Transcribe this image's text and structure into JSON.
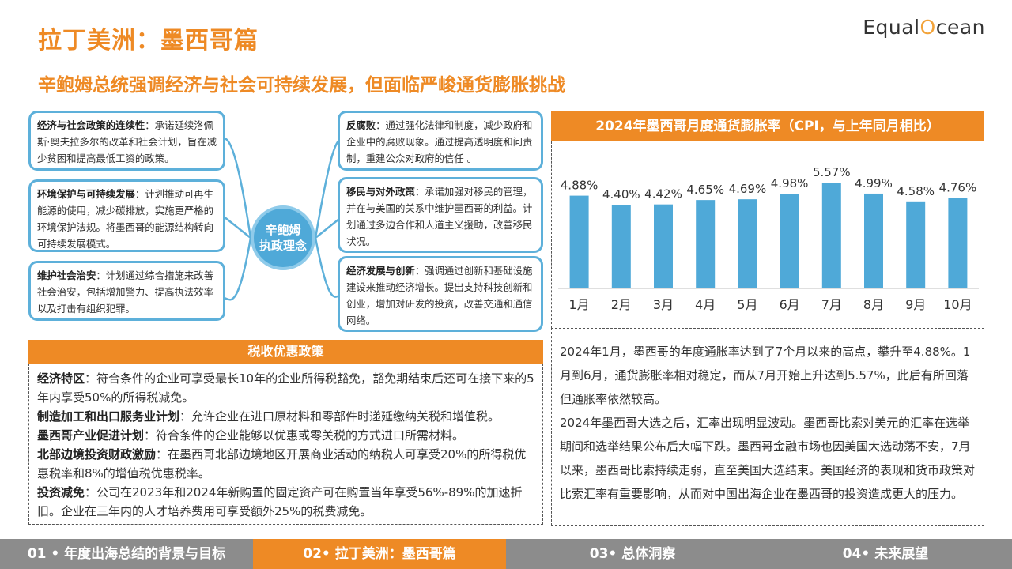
{
  "header": {
    "title": "拉丁美洲：墨西哥篇",
    "subtitle": "辛鲍姆总统强调经济与社会可持续发展，但面临严峻通货膨胀挑战",
    "logo_prefix": "Equal",
    "logo_o": "O",
    "logo_suffix": "cean"
  },
  "mindmap": {
    "center_line1": "辛鲍姆",
    "center_line2": "执政理念",
    "items": [
      {
        "title": "经济与社会政策的连续性",
        "text": "：承诺延续洛佩斯·奥夫拉多尔的改革和社会计划，旨在减少贫困和提高最低工资的政策。"
      },
      {
        "title": "环境保护与可持续发展",
        "text": "：计划推动可再生能源的使用，减少碳排放，实施更严格的环境保护法规。将墨西哥的能源结构转向可持续发展模式。"
      },
      {
        "title": "维护社会治安",
        "text": "：计划通过综合措施来改善社会治安，包括增加警力、提高执法效率以及打击有组织犯罪。"
      },
      {
        "title": "反腐败",
        "text": "：通过强化法律和制度，减少政府和企业中的腐败现象。通过提高透明度和问责制，重建公众对政府的信任 。"
      },
      {
        "title": "移民与对外政策",
        "text": "：承诺加强对移民的管理，并在与美国的关系中维护墨西哥的利益。计划通过多边合作和人道主义援助，改善移民状况。"
      },
      {
        "title": "经济发展与创新",
        "text": "：强调通过创新和基础设施建设来推动经济增长。提出支持科技创新和创业，增加对研发的投资，改善交通和通信网络。"
      }
    ]
  },
  "tax": {
    "heading": "税收优惠政策",
    "items": [
      {
        "title": "经济特区",
        "text": "：符合条件的企业可享受最长10年的企业所得税豁免，豁免期结束后还可在接下来的5年内享受50%的所得税减免。"
      },
      {
        "title": "制造加工和出口服务业计划",
        "text": "：允许企业在进口原材料和零部件时递延缴纳关税和增值税。"
      },
      {
        "title": "墨西哥产业促进计划",
        "text": "：符合条件的企业能够以优惠或零关税的方式进口所需材料。"
      },
      {
        "title": "北部边境投资财政激励",
        "text": "：在墨西哥北部边境地区开展商业活动的纳税人可享受20%的所得税优惠税率和8%的增值税优惠税率。"
      },
      {
        "title": "投资减免",
        "text": "：公司在2023年和2024年新购置的固定资产可在购置当年享受56%-89%的加速折旧。企业在三年内的人才培养费用可享受额外25%的税费减免。"
      }
    ]
  },
  "chart_data": {
    "type": "bar",
    "title": "2024年墨西哥月度通货膨胀率（CPI，与上年同月相比）",
    "categories": [
      "1月",
      "2月",
      "3月",
      "4月",
      "5月",
      "6月",
      "7月",
      "8月",
      "9月",
      "10月"
    ],
    "values": [
      4.88,
      4.4,
      4.42,
      4.65,
      4.69,
      4.98,
      5.57,
      4.99,
      4.58,
      4.76
    ],
    "labels": [
      "4.88%",
      "4.40%",
      "4.42%",
      "4.65%",
      "4.69%",
      "4.98%",
      "5.57%",
      "4.99%",
      "4.58%",
      "4.76%"
    ],
    "bar_color": "#4FA9D8",
    "ylim": [
      0,
      5.57
    ],
    "grid": false
  },
  "analysis": {
    "paragraphs": [
      "2024年1月，墨西哥的年度通胀率达到了7个月以来的高点，攀升至4.88%。1月到6月，通货膨胀率相对稳定，而从7月开始上升达到5.57%，此后有所回落但通胀率依然较高。",
      "2024年墨西哥大选之后，汇率出现明显波动。墨西哥比索对美元的汇率在选举期间和选举结果公布后大幅下跌。墨西哥金融市场也因美国大选动荡不安，7月以来，墨西哥比索持续走弱，直至美国大选结束。美国经济的表现和货币政策对比索汇率有重要影响，从而对中国出海企业在墨西哥的投资造成更大的压力。"
    ]
  },
  "footer": {
    "tabs": [
      {
        "label": "01 • 年度出海总结的背景与目标"
      },
      {
        "label": "02• 拉丁美洲：墨西哥篇"
      },
      {
        "label": "03• 总体洞察"
      },
      {
        "label": "04• 未来展望"
      }
    ]
  }
}
